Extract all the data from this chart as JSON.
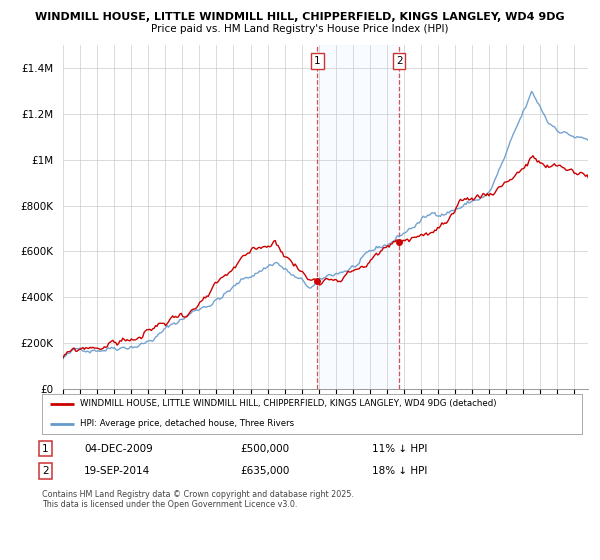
{
  "title1": "WINDMILL HOUSE, LITTLE WINDMILL HILL, CHIPPERFIELD, KINGS LANGLEY, WD4 9DG",
  "title2": "Price paid vs. HM Land Registry's House Price Index (HPI)",
  "ylim": [
    0,
    1500000
  ],
  "yticks": [
    0,
    200000,
    400000,
    600000,
    800000,
    1000000,
    1200000,
    1400000
  ],
  "ytick_labels": [
    "£0",
    "£200K",
    "£400K",
    "£600K",
    "£800K",
    "£1M",
    "£1.2M",
    "£1.4M"
  ],
  "sale1_date": 2009.92,
  "sale1_price": 500000,
  "sale2_date": 2014.72,
  "sale2_price": 635000,
  "vshade_color": "#ddeeff",
  "hpi_color": "#6699cc",
  "price_color": "#cc0000",
  "legend_line1": "WINDMILL HOUSE, LITTLE WINDMILL HILL, CHIPPERFIELD, KINGS LANGLEY, WD4 9DG (detached)",
  "legend_line2": "HPI: Average price, detached house, Three Rivers",
  "footnote": "Contains HM Land Registry data © Crown copyright and database right 2025.\nThis data is licensed under the Open Government Licence v3.0.",
  "table_row1_num": "1",
  "table_row1_date": "04-DEC-2009",
  "table_row1_price": "£500,000",
  "table_row1_hpi": "11% ↓ HPI",
  "table_row2_num": "2",
  "table_row2_date": "19-SEP-2014",
  "table_row2_price": "£635,000",
  "table_row2_hpi": "18% ↓ HPI"
}
